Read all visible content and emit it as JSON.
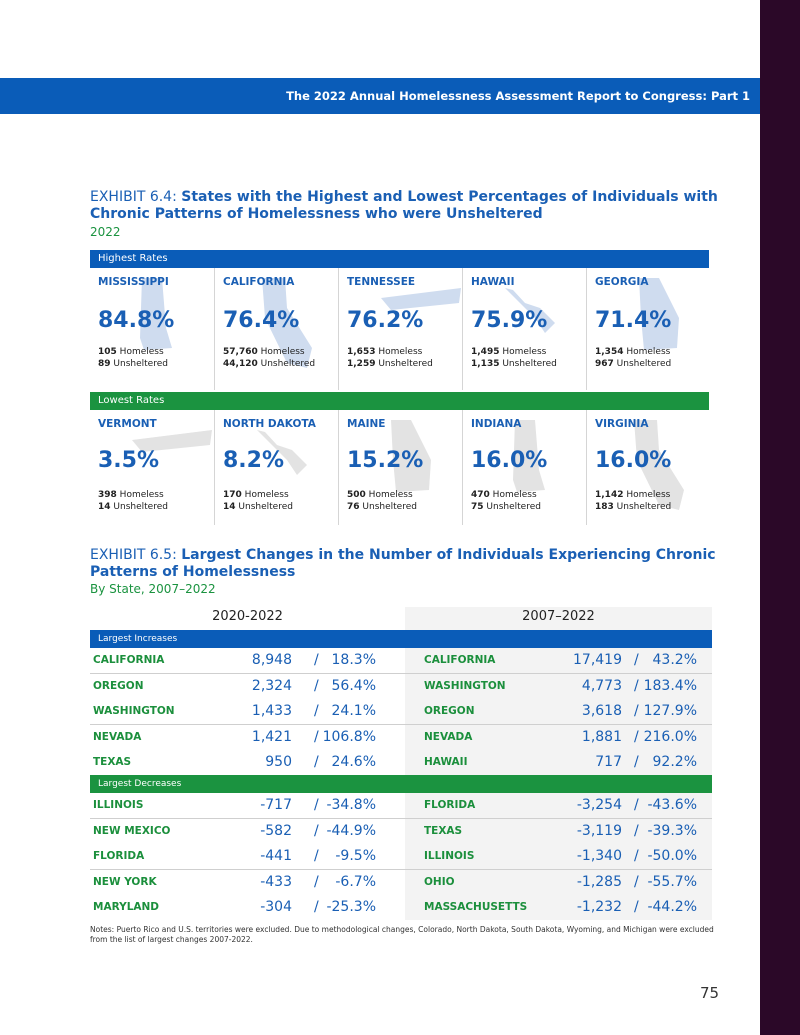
{
  "header": {
    "title": "The 2022 Annual Homelessness Assessment Report to Congress: Part 1"
  },
  "exhibit_6_4": {
    "label": "EXHIBIT 6.4:",
    "title": "States with the Highest and Lowest Percentages of Individuals with Chronic Patterns of Homelessness who were Unsheltered",
    "subtitle": "2022",
    "homeless_label": "Homeless",
    "unsheltered_label": "Unsheltered",
    "groups": [
      {
        "name": "Highest Rates",
        "states": [
          {
            "name": "MISSISSIPPI",
            "rate": "84.8%",
            "homeless": "105",
            "unsheltered": "89"
          },
          {
            "name": "CALIFORNIA",
            "rate": "76.4%",
            "homeless": "57,760",
            "unsheltered": "44,120"
          },
          {
            "name": "TENNESSEE",
            "rate": "76.2%",
            "homeless": "1,653",
            "unsheltered": "1,259"
          },
          {
            "name": "HAWAII",
            "rate": "75.9%",
            "homeless": "1,495",
            "unsheltered": "1,135"
          },
          {
            "name": "GEORGIA",
            "rate": "71.4%",
            "homeless": "1,354",
            "unsheltered": "967"
          }
        ]
      },
      {
        "name": "Lowest Rates",
        "states": [
          {
            "name": "VERMONT",
            "rate": "3.5%",
            "homeless": "398",
            "unsheltered": "14"
          },
          {
            "name": "NORTH DAKOTA",
            "rate": "8.2%",
            "homeless": "170",
            "unsheltered": "14"
          },
          {
            "name": "MAINE",
            "rate": "15.2%",
            "homeless": "500",
            "unsheltered": "76"
          },
          {
            "name": "INDIANA",
            "rate": "16.0%",
            "homeless": "470",
            "unsheltered": "75"
          },
          {
            "name": "VIRGINIA",
            "rate": "16.0%",
            "homeless": "1,142",
            "unsheltered": "183"
          }
        ]
      }
    ]
  },
  "exhibit_6_5": {
    "label": "EXHIBIT 6.5:",
    "title": "Largest Changes in the Number of Individuals Experiencing Chronic Patterns of Homelessness",
    "subtitle": "By State, 2007–2022",
    "periods": [
      "2020-2022",
      "2007–2022"
    ],
    "separator": "/",
    "sections": [
      {
        "name": "Largest Increases",
        "rows": [
          [
            {
              "state": "CALIFORNIA",
              "count": "8,948",
              "percent": "18.3%"
            },
            {
              "state": "CALIFORNIA",
              "count": "17,419",
              "percent": "43.2%"
            }
          ],
          [
            {
              "state": "OREGON",
              "count": "2,324",
              "percent": "56.4%"
            },
            {
              "state": "WASHINGTON",
              "count": "4,773",
              "percent": "183.4%"
            }
          ],
          [
            {
              "state": "WASHINGTON",
              "count": "1,433",
              "percent": "24.1%"
            },
            {
              "state": "OREGON",
              "count": "3,618",
              "percent": "127.9%"
            }
          ],
          [
            {
              "state": "NEVADA",
              "count": "1,421",
              "percent": "106.8%"
            },
            {
              "state": "NEVADA",
              "count": "1,881",
              "percent": "216.0%"
            }
          ],
          [
            {
              "state": "TEXAS",
              "count": "950",
              "percent": "24.6%"
            },
            {
              "state": "HAWAII",
              "count": "717",
              "percent": "92.2%"
            }
          ]
        ]
      },
      {
        "name": "Largest Decreases",
        "rows": [
          [
            {
              "state": "ILLINOIS",
              "count": "-717",
              "percent": "-34.8%"
            },
            {
              "state": "FLORIDA",
              "count": "-3,254",
              "percent": "-43.6%"
            }
          ],
          [
            {
              "state": "NEW MEXICO",
              "count": "-582",
              "percent": "-44.9%"
            },
            {
              "state": "TEXAS",
              "count": "-3,119",
              "percent": "-39.3%"
            }
          ],
          [
            {
              "state": "FLORIDA",
              "count": "-441",
              "percent": "-9.5%"
            },
            {
              "state": "ILLINOIS",
              "count": "-1,340",
              "percent": "-50.0%"
            }
          ],
          [
            {
              "state": "NEW YORK",
              "count": "-433",
              "percent": "-6.7%"
            },
            {
              "state": "OHIO",
              "count": "-1,285",
              "percent": "-55.7%"
            }
          ],
          [
            {
              "state": "MARYLAND",
              "count": "-304",
              "percent": "-25.3%"
            },
            {
              "state": "MASSACHUSETTS",
              "count": "-1,232",
              "percent": "-44.2%"
            }
          ]
        ]
      }
    ]
  },
  "notes": "Notes: Puerto Rico and U.S. territories were excluded. Due to methodological changes, Colorado, North Dakota, South Dakota, Wyoming, and Michigan were excluded from the list of largest changes 2007-2022.",
  "page_number": "75"
}
